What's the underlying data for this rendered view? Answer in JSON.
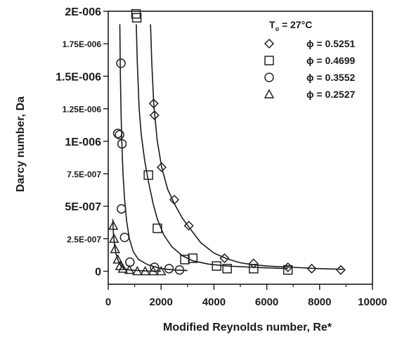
{
  "chart_data": {
    "type": "scatter",
    "xlabel": "Modified Reynolds number, Re*",
    "ylabel": "Darcy number, Da",
    "xlim": [
      0,
      10000
    ],
    "ylim": [
      -1e-07,
      2e-06
    ],
    "x_ticks": [
      0,
      2000,
      4000,
      6000,
      8000,
      10000
    ],
    "x_tick_labels": [
      "0",
      "2000",
      "4000",
      "6000",
      "8000",
      "10000"
    ],
    "y_ticks": [
      0,
      2.5e-07,
      5e-07,
      7.5e-07,
      1e-06,
      1.25e-06,
      1.5e-06,
      1.75e-06,
      2e-06
    ],
    "y_tick_labels": [
      "0",
      "2.5E-007",
      "5E-007",
      "7.5E-007",
      "1E-006",
      "1.25E-006",
      "1.5E-006",
      "1.75E-006",
      "2E-006"
    ],
    "grid": false,
    "legend_position": "top-right",
    "legend_title": {
      "main": "T",
      "sub": "o",
      "rest": " = 27°C"
    },
    "series": [
      {
        "name": "ϕ = 0.5251",
        "marker": "diamond",
        "points": [
          [
            1720,
            1.29e-06
          ],
          [
            1750,
            1.2e-06
          ],
          [
            2020,
            8e-07
          ],
          [
            2500,
            5.5e-07
          ],
          [
            3050,
            3.5e-07
          ],
          [
            4400,
            1e-07
          ],
          [
            5500,
            6e-08
          ],
          [
            6800,
            3e-08
          ],
          [
            7700,
            2e-08
          ],
          [
            8800,
            1e-08
          ]
        ],
        "curve": [
          [
            1600,
            1.9e-06
          ],
          [
            1650,
            1.6e-06
          ],
          [
            1720,
            1.29e-06
          ],
          [
            1850,
            1.01e-06
          ],
          [
            2020,
            8e-07
          ],
          [
            2250,
            6.3e-07
          ],
          [
            2500,
            5.2e-07
          ],
          [
            2800,
            4.1e-07
          ],
          [
            3050,
            3.4e-07
          ],
          [
            3500,
            2.2e-07
          ],
          [
            4000,
            1.4e-07
          ],
          [
            4500,
            9.5e-08
          ],
          [
            5000,
            6.5e-08
          ],
          [
            5500,
            5e-08
          ],
          [
            6000,
            4e-08
          ],
          [
            7000,
            3e-08
          ],
          [
            8000,
            2e-08
          ],
          [
            8900,
            1.5e-08
          ]
        ]
      },
      {
        "name": "ϕ = 0.4699",
        "marker": "square",
        "points": [
          [
            1050,
            1.98e-06
          ],
          [
            1080,
            1.95e-06
          ],
          [
            1520,
            7.4e-07
          ],
          [
            1860,
            3.3e-07
          ],
          [
            2900,
            9e-08
          ],
          [
            3200,
            1e-07
          ],
          [
            4100,
            4e-08
          ],
          [
            4500,
            2e-08
          ],
          [
            5500,
            2e-08
          ],
          [
            6800,
            1e-08
          ]
        ],
        "curve": [
          [
            1060,
            1.9e-06
          ],
          [
            1100,
            1.6e-06
          ],
          [
            1170,
            1.25e-06
          ],
          [
            1250,
            1.05e-06
          ],
          [
            1380,
            8.5e-07
          ],
          [
            1520,
            6.9e-07
          ],
          [
            1700,
            5.2e-07
          ],
          [
            1860,
            4e-07
          ],
          [
            2100,
            2.8e-07
          ],
          [
            2400,
            1.9e-07
          ],
          [
            2800,
            1.2e-07
          ],
          [
            3200,
            8e-08
          ],
          [
            3800,
            5.5e-08
          ],
          [
            4500,
            4e-08
          ],
          [
            5500,
            3e-08
          ],
          [
            6800,
            2e-08
          ]
        ]
      },
      {
        "name": "ϕ = 0.3552",
        "marker": "circle",
        "points": [
          [
            480,
            1.6e-06
          ],
          [
            360,
            1.06e-06
          ],
          [
            430,
            1.05e-06
          ],
          [
            520,
            9.8e-07
          ],
          [
            500,
            4.8e-07
          ],
          [
            620,
            2.6e-07
          ],
          [
            820,
            7e-08
          ],
          [
            1750,
            3e-08
          ],
          [
            2300,
            2e-08
          ],
          [
            2700,
            1e-08
          ]
        ],
        "curve": [
          [
            440,
            1.9e-06
          ],
          [
            460,
            1.5e-06
          ],
          [
            490,
            1.18e-06
          ],
          [
            520,
            9.5e-07
          ],
          [
            560,
            7.4e-07
          ],
          [
            620,
            5.5e-07
          ],
          [
            700,
            3.8e-07
          ],
          [
            800,
            2.5e-07
          ],
          [
            950,
            1.5e-07
          ],
          [
            1150,
            9e-08
          ],
          [
            1500,
            5e-08
          ],
          [
            2000,
            2e-08
          ],
          [
            2500,
            1e-08
          ],
          [
            3000,
            5e-09
          ]
        ]
      },
      {
        "name": "ϕ = 0.2527",
        "marker": "triangle",
        "points": [
          [
            190,
            3.5e-07
          ],
          [
            220,
            2.5e-07
          ],
          [
            260,
            1.7e-07
          ],
          [
            360,
            9e-08
          ],
          [
            450,
            4e-08
          ],
          [
            550,
            2e-08
          ],
          [
            800,
            1e-08
          ],
          [
            1100,
            0.0
          ],
          [
            1400,
            0.0
          ],
          [
            1700,
            0.0
          ],
          [
            2000,
            0.0
          ]
        ],
        "curve": [
          [
            170,
            4e-07
          ],
          [
            200,
            2.8e-07
          ],
          [
            240,
            2e-07
          ],
          [
            300,
            1.3e-07
          ],
          [
            380,
            8e-08
          ],
          [
            480,
            4e-08
          ],
          [
            600,
            2e-08
          ],
          [
            800,
            1e-08
          ],
          [
            1100,
            5e-09
          ],
          [
            1500,
            2e-09
          ],
          [
            2000,
            0.0
          ]
        ]
      }
    ]
  }
}
